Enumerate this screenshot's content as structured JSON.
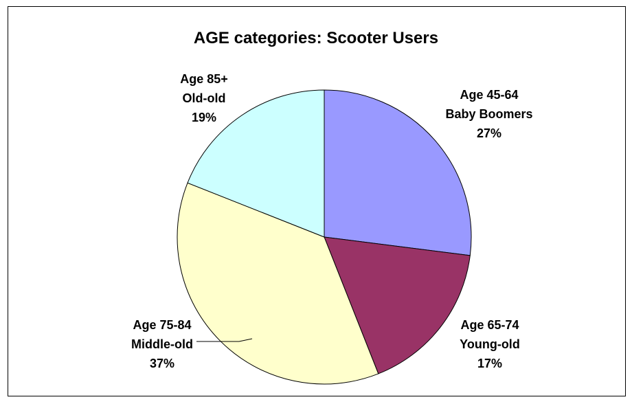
{
  "chart_data": {
    "type": "pie",
    "title": "AGE categories: Scooter Users",
    "slices": [
      {
        "age": "Age 45-64",
        "group": "Baby Boomers",
        "percent_label": "27%",
        "value": 27,
        "color": "#9999ff"
      },
      {
        "age": "Age 65-74",
        "group": "Young-old",
        "percent_label": "17%",
        "value": 17,
        "color": "#993366"
      },
      {
        "age": "Age 75-84",
        "group": "Middle-old",
        "percent_label": "37%",
        "value": 37,
        "color": "#ffffcc"
      },
      {
        "age": "Age 85+",
        "group": "Old-old",
        "percent_label": "19%",
        "value": 19,
        "color": "#ccffff"
      }
    ],
    "start_angle": "12 o'clock",
    "direction": "clockwise",
    "legend": "none",
    "border": "#000000"
  }
}
